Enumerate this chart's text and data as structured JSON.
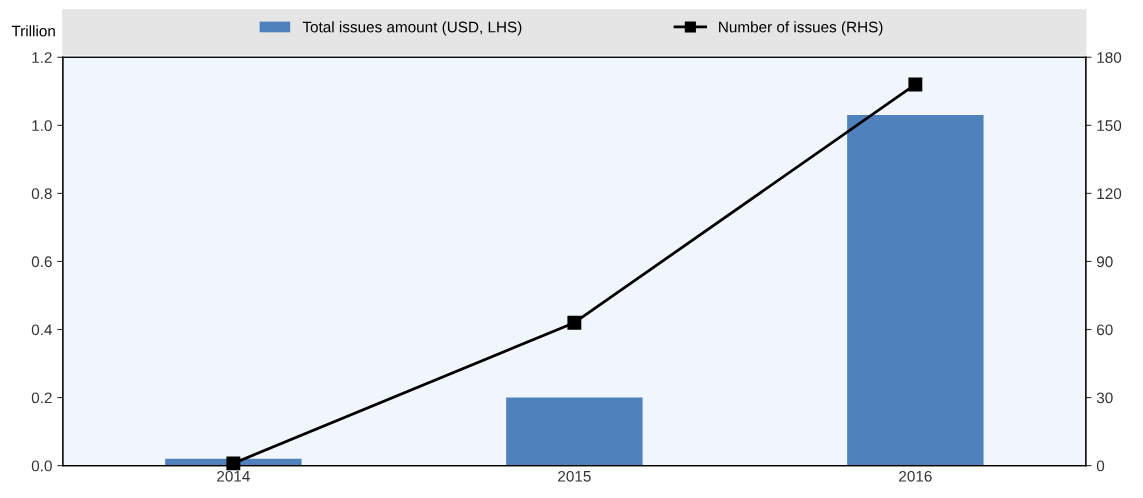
{
  "chart_data": {
    "type": "bar",
    "ylabel": "Trillion",
    "categories": [
      "2014",
      "2015",
      "2016"
    ],
    "series": [
      {
        "name": "Total issues amount (USD, LHS)",
        "color": "#4f81bd",
        "values": [
          0.02,
          0.2,
          1.03
        ]
      },
      {
        "name": "Number of issues (RHS)",
        "type": "line",
        "axis": "y2",
        "color": "#000000",
        "values": [
          1,
          63,
          168
        ],
        "marker": "square"
      }
    ],
    "ylim": [
      0,
      1.2
    ],
    "yticks": [
      {
        "value": 0,
        "label": "0.0"
      },
      {
        "value": 0.2,
        "label": "0.2"
      },
      {
        "value": 0.4,
        "label": "0.4"
      },
      {
        "value": 0.6,
        "label": "0.6"
      },
      {
        "value": 0.8,
        "label": "0.8"
      },
      {
        "value": 1.0,
        "label": "1.0"
      },
      {
        "value": 1.2,
        "label": "1.2"
      }
    ],
    "y2lim": [
      0,
      180
    ],
    "y2ticks": [
      0,
      30,
      60,
      90,
      120,
      150,
      180
    ],
    "legend": "top",
    "grid": false
  }
}
